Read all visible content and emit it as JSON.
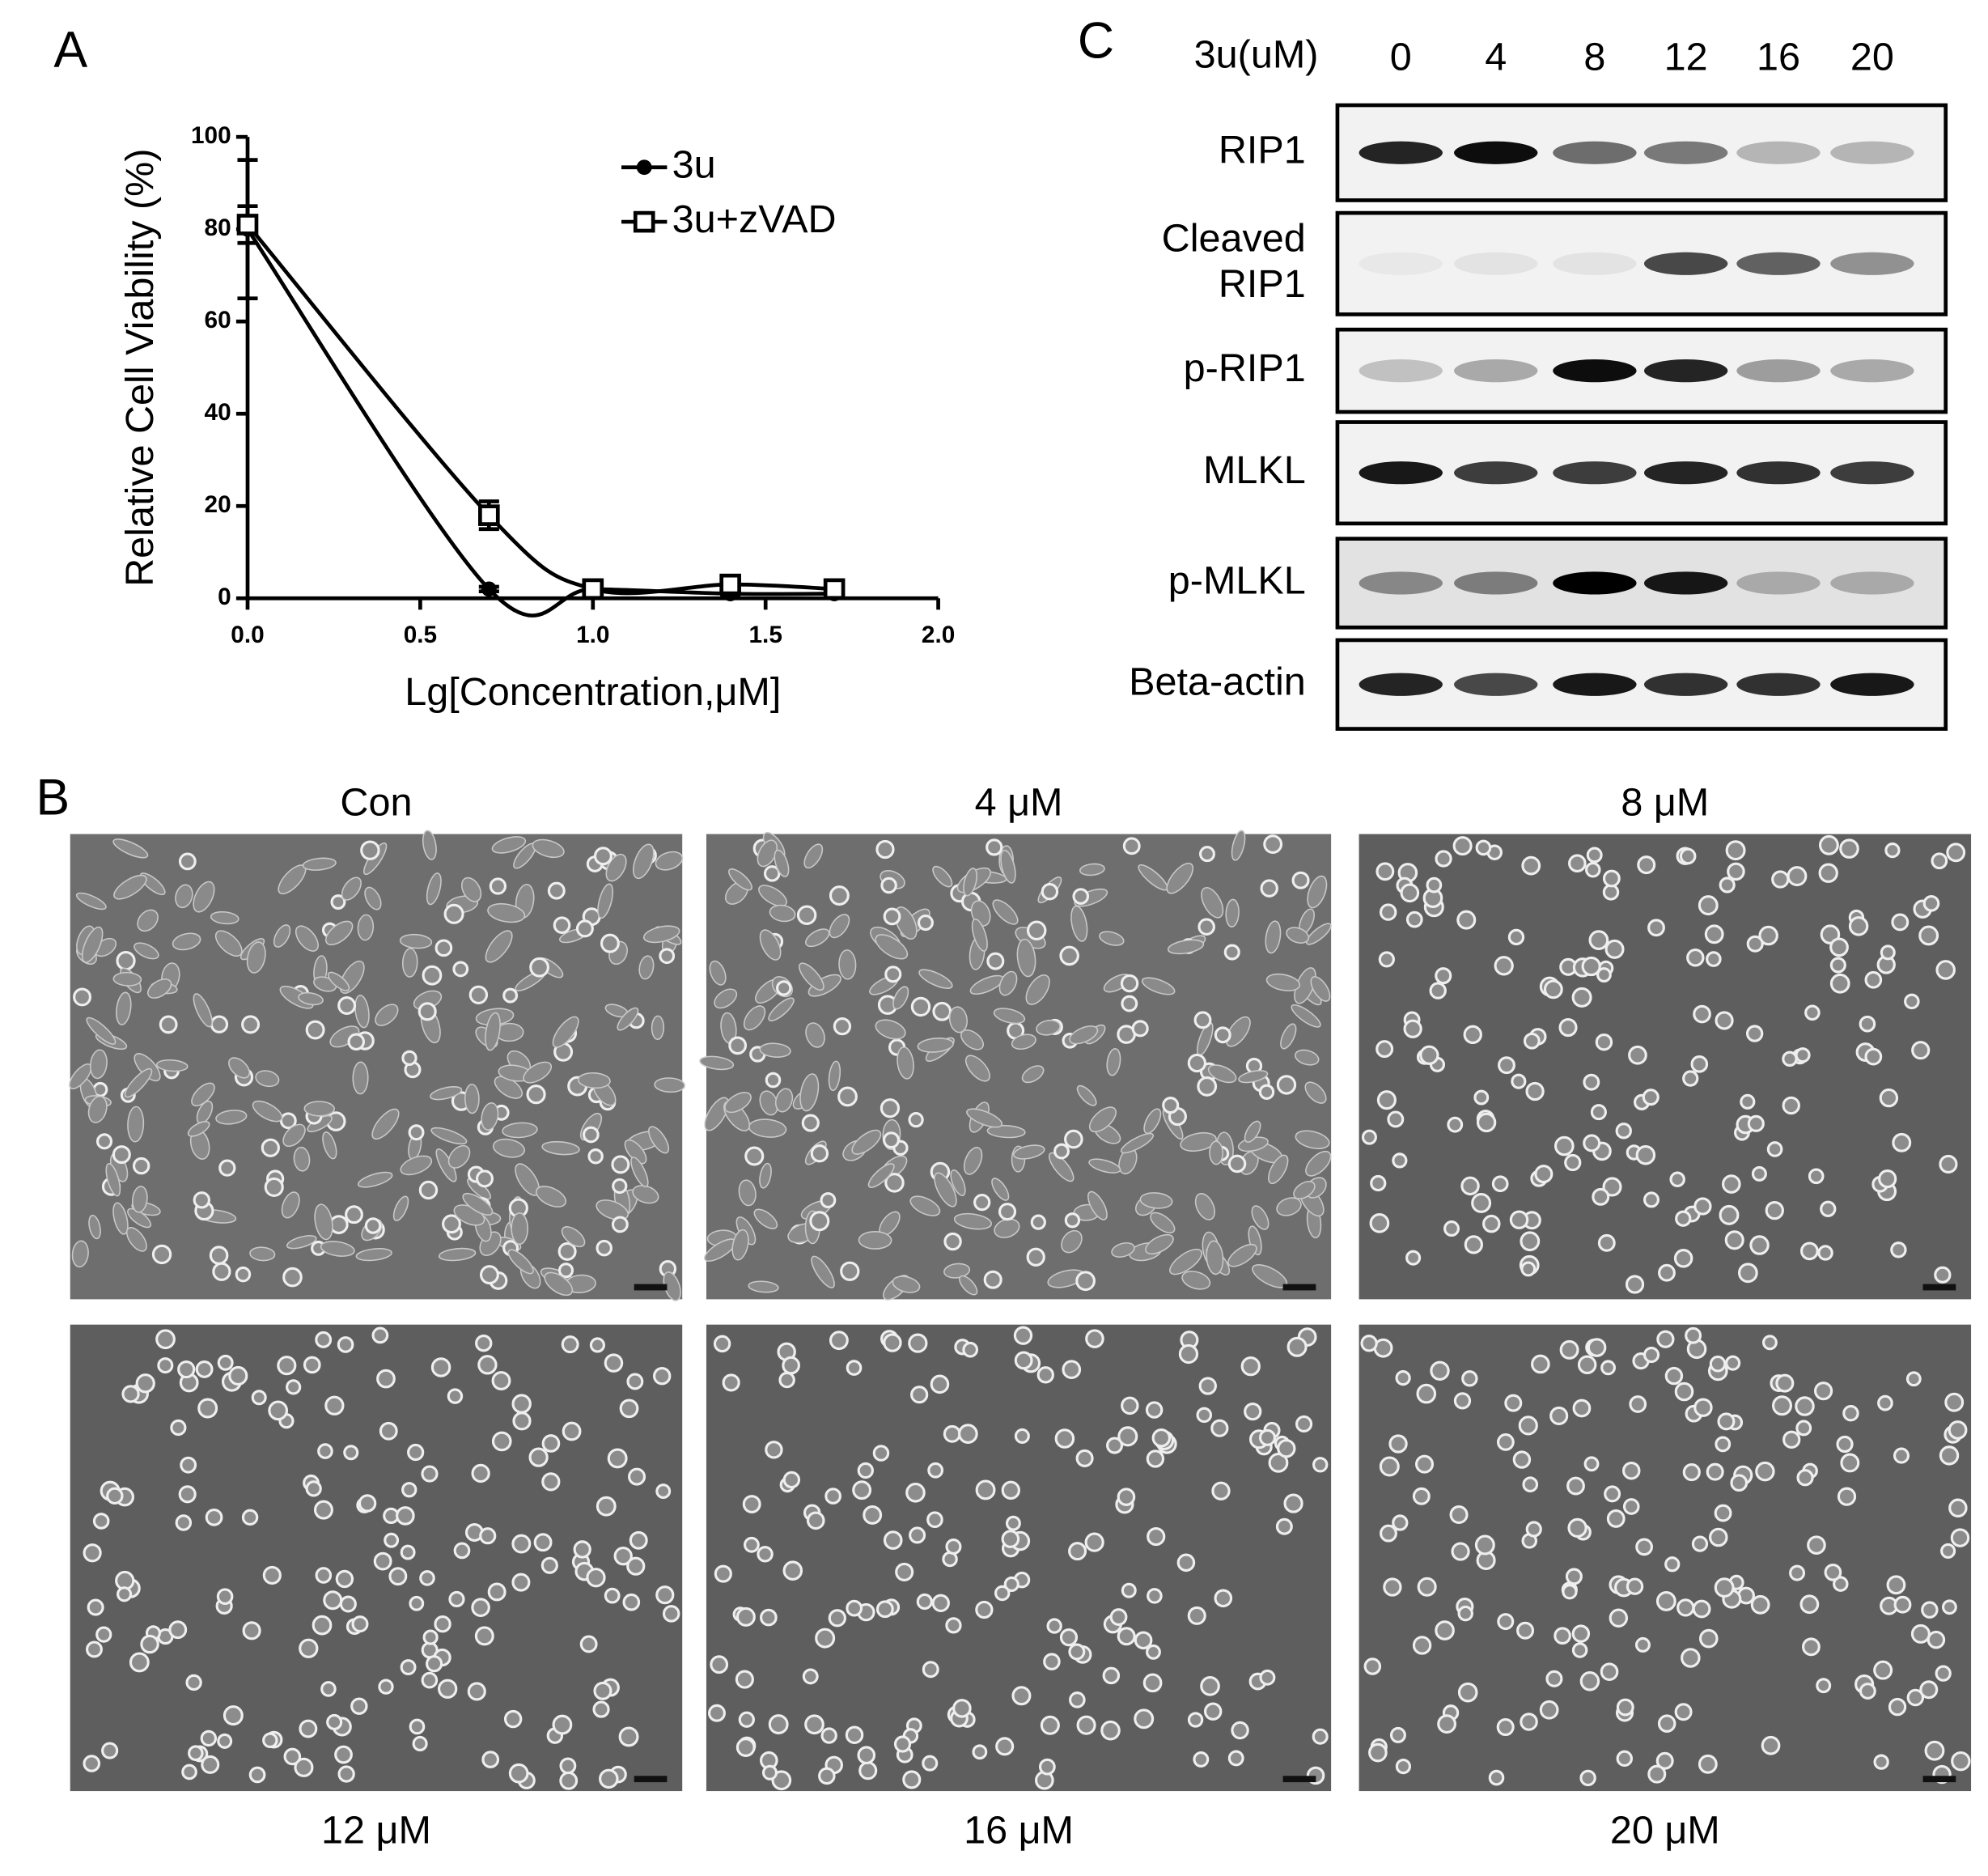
{
  "chart_data": {
    "type": "line",
    "panel_label": "A",
    "x": [
      0,
      0.699,
      1,
      1.398,
      1.699
    ],
    "series": [
      {
        "name": "3u",
        "color": "#000000",
        "marker": "circle",
        "values": [
          80,
          2,
          2,
          1,
          1
        ],
        "errors": [
          15,
          0.5,
          0.5,
          0.5,
          0.5
        ]
      },
      {
        "name": "3u+zVAD",
        "color": "#000000",
        "marker": "square-open",
        "values": [
          81,
          18,
          2,
          3,
          2
        ],
        "errors": [
          4,
          3,
          1,
          1,
          1
        ]
      }
    ],
    "xlabel": "Lg[Concentration,μM]",
    "ylabel": "Relative Cell Viability (%)",
    "xlim": [
      0,
      2
    ],
    "ylim": [
      0,
      100
    ],
    "xticks": [
      {
        "value": 0,
        "label": "0.0"
      },
      {
        "value": 0.5,
        "label": "0.5"
      },
      {
        "value": 1,
        "label": "1.0"
      },
      {
        "value": 1.5,
        "label": "1.5"
      },
      {
        "value": 2,
        "label": "2.0"
      }
    ],
    "yticks": [
      0,
      20,
      40,
      60,
      80,
      100
    ],
    "legend": "upper right",
    "grid": false
  },
  "western_blot": {
    "panel_label": "C",
    "header": "3u(uM)",
    "lanes": [
      "0",
      "4",
      "8",
      "12",
      "16",
      "20"
    ],
    "rows": [
      [
        "RIP1"
      ],
      [
        "Cleaved",
        "RIP1"
      ],
      [
        "p-RIP1"
      ],
      [
        "MLKL"
      ],
      [
        "p-MLKL"
      ],
      [
        "Beta-actin"
      ]
    ]
  },
  "micrographs": {
    "panel_label": "B",
    "labels": [
      "Con",
      "4 μM",
      "8 μM",
      "12 μM",
      "16 μM",
      "20 μM"
    ]
  }
}
